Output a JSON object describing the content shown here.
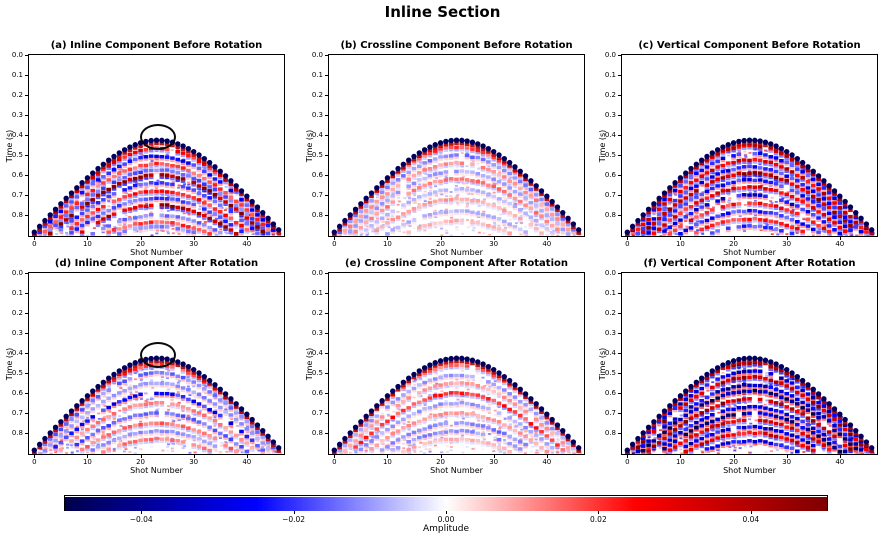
{
  "figure": {
    "suptitle": "Inline Section",
    "background": "#ffffff"
  },
  "chart_data": {
    "type": "heatmap",
    "suptitle": "Inline Section",
    "colormap": "seismic",
    "clim": [
      -0.05,
      0.05
    ],
    "xlabel": "Shot Number",
    "ylabel": "Time (s)",
    "x_range": [
      -1,
      47
    ],
    "time_range_s": [
      0.0,
      0.905
    ],
    "xtick_labels": [
      "0",
      "10",
      "20",
      "30",
      "40"
    ],
    "xtick_values": [
      0,
      10,
      20,
      30,
      40
    ],
    "ytick_labels": [
      "0.0",
      "0.1",
      "0.2",
      "0.3",
      "0.4",
      "0.5",
      "0.6",
      "0.7",
      "0.8"
    ],
    "ytick_values": [
      0.0,
      0.1,
      0.2,
      0.3,
      0.4,
      0.5,
      0.6,
      0.7,
      0.8
    ],
    "moveout": {
      "n_traces": 47,
      "apex_shot": 23.2,
      "apex_time_s": 0.42,
      "edge_time_s": 0.88
    },
    "panels": [
      {
        "id": "a",
        "title": "(a) Inline Component Before Rotation",
        "row": 0,
        "col": 0,
        "seed": 11,
        "intensity": 1.0,
        "texture": 0.5,
        "events": [
          {
            "t": 0.465,
            "a": 0.6
          },
          {
            "t": 0.505,
            "a": -0.5
          },
          {
            "t": 0.545,
            "a": 0.4
          },
          {
            "t": 0.575,
            "a": -0.35
          },
          {
            "t": 0.6,
            "a": 1.0
          },
          {
            "t": 0.64,
            "a": -0.45
          },
          {
            "t": 0.68,
            "a": 0.5
          },
          {
            "t": 0.715,
            "a": -0.4
          },
          {
            "t": 0.75,
            "a": 0.9
          },
          {
            "t": 0.8,
            "a": -0.3
          },
          {
            "t": 0.835,
            "a": 0.4
          },
          {
            "t": 0.86,
            "a": -0.25
          }
        ],
        "annotation_ellipse": {
          "shot": 23.2,
          "time_s": 0.41,
          "rx_shots": 3.4,
          "ry_s": 0.065
        }
      },
      {
        "id": "b",
        "title": "(b) Crossline Component Before Rotation",
        "row": 0,
        "col": 1,
        "seed": 22,
        "intensity": 0.8,
        "texture": 0.3,
        "events": [
          {
            "t": 0.46,
            "a": 0.5
          },
          {
            "t": 0.5,
            "a": -0.35
          },
          {
            "t": 0.54,
            "a": 0.3
          },
          {
            "t": 0.58,
            "a": -0.25
          },
          {
            "t": 0.62,
            "a": 0.35
          },
          {
            "t": 0.67,
            "a": -0.2
          },
          {
            "t": 0.72,
            "a": 0.25
          },
          {
            "t": 0.78,
            "a": -0.2
          },
          {
            "t": 0.83,
            "a": 0.2
          }
        ],
        "annotation_ellipse": null
      },
      {
        "id": "c",
        "title": "(c) Vertical Component Before Rotation",
        "row": 0,
        "col": 2,
        "seed": 33,
        "intensity": 1.05,
        "texture": 0.55,
        "events": [
          {
            "t": 0.455,
            "a": 0.7
          },
          {
            "t": 0.49,
            "a": -0.5
          },
          {
            "t": 0.525,
            "a": 0.7
          },
          {
            "t": 0.56,
            "a": -0.5
          },
          {
            "t": 0.59,
            "a": 0.85
          },
          {
            "t": 0.625,
            "a": -0.5
          },
          {
            "t": 0.66,
            "a": 0.6
          },
          {
            "t": 0.7,
            "a": -0.6
          },
          {
            "t": 0.74,
            "a": 0.5
          },
          {
            "t": 0.78,
            "a": -0.45
          },
          {
            "t": 0.82,
            "a": 0.5
          },
          {
            "t": 0.855,
            "a": -0.4
          }
        ],
        "annotation_ellipse": null
      },
      {
        "id": "d",
        "title": "(d) Inline Component After Rotation",
        "row": 1,
        "col": 0,
        "seed": 44,
        "intensity": 0.78,
        "texture": 0.4,
        "events": [
          {
            "t": 0.46,
            "a": 0.55
          },
          {
            "t": 0.5,
            "a": -0.4
          },
          {
            "t": 0.55,
            "a": -0.3
          },
          {
            "t": 0.6,
            "a": -0.7
          },
          {
            "t": 0.65,
            "a": 0.35
          },
          {
            "t": 0.7,
            "a": -0.45
          },
          {
            "t": 0.75,
            "a": 0.4
          },
          {
            "t": 0.79,
            "a": -0.3
          },
          {
            "t": 0.83,
            "a": 0.35
          }
        ],
        "annotation_ellipse": {
          "shot": 23.2,
          "time_s": 0.41,
          "rx_shots": 3.4,
          "ry_s": 0.065
        }
      },
      {
        "id": "e",
        "title": "(e) Crossline Component After Rotation",
        "row": 1,
        "col": 1,
        "seed": 55,
        "intensity": 0.7,
        "texture": 0.32,
        "events": [
          {
            "t": 0.46,
            "a": 0.45
          },
          {
            "t": 0.51,
            "a": -0.3
          },
          {
            "t": 0.55,
            "a": 0.3
          },
          {
            "t": 0.6,
            "a": 0.65
          },
          {
            "t": 0.65,
            "a": -0.3
          },
          {
            "t": 0.7,
            "a": 0.3
          },
          {
            "t": 0.75,
            "a": -0.4
          },
          {
            "t": 0.79,
            "a": -0.35
          },
          {
            "t": 0.83,
            "a": 0.25
          }
        ],
        "annotation_ellipse": null
      },
      {
        "id": "f",
        "title": "(f) Vertical Component After Rotation",
        "row": 1,
        "col": 2,
        "seed": 66,
        "intensity": 1.15,
        "texture": 0.6,
        "events": [
          {
            "t": 0.45,
            "a": 0.9
          },
          {
            "t": 0.49,
            "a": -0.6
          },
          {
            "t": 0.52,
            "a": 0.8
          },
          {
            "t": 0.56,
            "a": -0.6
          },
          {
            "t": 0.59,
            "a": -0.85
          },
          {
            "t": 0.63,
            "a": 0.8
          },
          {
            "t": 0.67,
            "a": -0.6
          },
          {
            "t": 0.7,
            "a": -0.75
          },
          {
            "t": 0.735,
            "a": 0.6
          },
          {
            "t": 0.77,
            "a": -0.6
          },
          {
            "t": 0.8,
            "a": 0.6
          },
          {
            "t": 0.84,
            "a": -0.5
          }
        ],
        "annotation_ellipse": null
      }
    ],
    "colorbar": {
      "label": "Amplitude",
      "tick_labels": [
        "−0.04",
        "−0.02",
        "0.00",
        "0.02",
        "0.04"
      ],
      "tick_values": [
        -0.04,
        -0.02,
        0.0,
        0.02,
        0.04
      ],
      "vmin": -0.05,
      "vmax": 0.05,
      "gradient_stops": [
        "#00004D",
        "#0000FF",
        "#FFFFFF",
        "#FF0000",
        "#800000"
      ]
    }
  }
}
